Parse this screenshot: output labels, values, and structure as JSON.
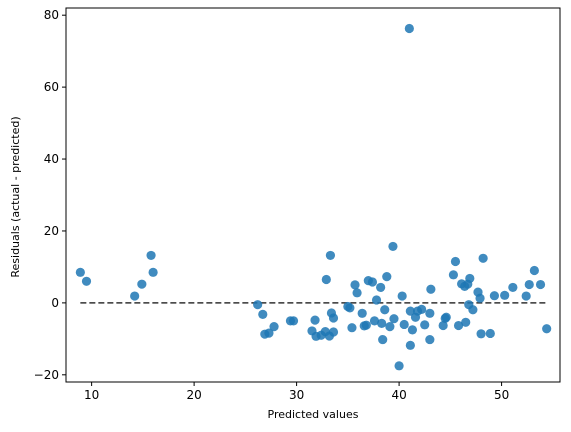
{
  "chart_data": {
    "type": "scatter",
    "title": "",
    "xlabel": "Predicted values",
    "ylabel": "Residuals (actual - predicted)",
    "xlim": [
      7.5,
      55.7
    ],
    "ylim": [
      -22,
      82
    ],
    "xticks": [
      10,
      20,
      30,
      40,
      50
    ],
    "yticks": [
      -20,
      0,
      20,
      40,
      60,
      80
    ],
    "grid": false,
    "colors": {
      "points": "#1f77b4",
      "reference_line": "#333333"
    },
    "reference_line": {
      "style": "dashed",
      "y": 0,
      "x_range": [
        8.9,
        54.4
      ]
    },
    "points": [
      [
        8.9,
        8.5
      ],
      [
        9.5,
        6.0
      ],
      [
        14.2,
        1.9
      ],
      [
        14.9,
        5.2
      ],
      [
        15.8,
        13.2
      ],
      [
        16.0,
        8.5
      ],
      [
        26.2,
        -0.5
      ],
      [
        26.7,
        -3.2
      ],
      [
        26.9,
        -8.7
      ],
      [
        27.3,
        -8.4
      ],
      [
        27.8,
        -6.6
      ],
      [
        29.4,
        -5.0
      ],
      [
        29.7,
        -5.0
      ],
      [
        31.5,
        -7.8
      ],
      [
        31.8,
        -4.8
      ],
      [
        31.9,
        -9.3
      ],
      [
        32.4,
        -9.0
      ],
      [
        32.8,
        -8.0
      ],
      [
        32.9,
        6.5
      ],
      [
        33.2,
        -9.2
      ],
      [
        33.4,
        -2.8
      ],
      [
        33.6,
        -4.2
      ],
      [
        33.3,
        13.2
      ],
      [
        33.6,
        -8.1
      ],
      [
        35.0,
        -1.0
      ],
      [
        35.2,
        -1.4
      ],
      [
        35.4,
        -6.9
      ],
      [
        35.7,
        5.0
      ],
      [
        35.9,
        2.8
      ],
      [
        36.4,
        -2.9
      ],
      [
        36.6,
        -6.4
      ],
      [
        36.8,
        -6.2
      ],
      [
        37.0,
        6.2
      ],
      [
        37.4,
        5.8
      ],
      [
        37.6,
        -5.0
      ],
      [
        37.8,
        0.8
      ],
      [
        38.2,
        4.3
      ],
      [
        38.3,
        -5.7
      ],
      [
        38.4,
        -10.2
      ],
      [
        38.6,
        -1.9
      ],
      [
        38.8,
        7.3
      ],
      [
        39.1,
        -6.6
      ],
      [
        39.4,
        15.7
      ],
      [
        39.5,
        -4.4
      ],
      [
        40.0,
        -17.5
      ],
      [
        40.3,
        1.9
      ],
      [
        40.5,
        -6.0
      ],
      [
        41.1,
        -11.8
      ],
      [
        41.0,
        76.3
      ],
      [
        41.1,
        -2.3
      ],
      [
        41.3,
        -7.5
      ],
      [
        41.6,
        -4.0
      ],
      [
        41.8,
        -2.3
      ],
      [
        42.2,
        -1.8
      ],
      [
        42.5,
        -6.1
      ],
      [
        43.0,
        -10.2
      ],
      [
        43.0,
        -2.9
      ],
      [
        43.1,
        3.8
      ],
      [
        44.3,
        -6.3
      ],
      [
        44.5,
        -4.3
      ],
      [
        44.6,
        -4.0
      ],
      [
        45.3,
        7.8
      ],
      [
        45.5,
        11.5
      ],
      [
        45.8,
        -6.3
      ],
      [
        46.1,
        5.3
      ],
      [
        46.4,
        4.6
      ],
      [
        46.5,
        -5.4
      ],
      [
        46.7,
        5.2
      ],
      [
        46.9,
        6.8
      ],
      [
        46.8,
        -0.5
      ],
      [
        47.2,
        -1.9
      ],
      [
        47.7,
        3.0
      ],
      [
        47.9,
        1.3
      ],
      [
        48.0,
        -8.6
      ],
      [
        48.2,
        12.4
      ],
      [
        48.9,
        -8.5
      ],
      [
        49.3,
        2.0
      ],
      [
        50.3,
        2.1
      ],
      [
        51.1,
        4.3
      ],
      [
        52.4,
        1.9
      ],
      [
        52.7,
        5.1
      ],
      [
        53.2,
        9.0
      ],
      [
        53.8,
        5.1
      ],
      [
        54.4,
        -7.2
      ]
    ]
  }
}
